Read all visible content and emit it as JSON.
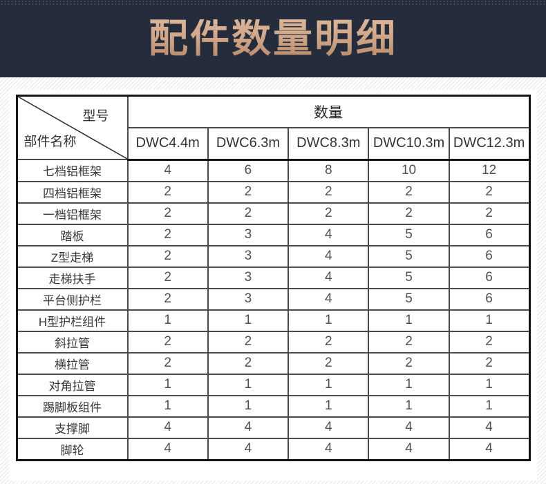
{
  "title": "配件数量明细",
  "table": {
    "corner": {
      "top_right": "型号",
      "bottom_left": "部件名称"
    },
    "quantity_header": "数量",
    "models": [
      "DWC4.4m",
      "DWC6.3m",
      "DWC8.3m",
      "DWC10.3m",
      "DWC12.3m"
    ],
    "rows": [
      {
        "name": "七档铝框架",
        "values": [
          4,
          6,
          8,
          10,
          12
        ]
      },
      {
        "name": "四档铝框架",
        "values": [
          2,
          2,
          2,
          2,
          2
        ]
      },
      {
        "name": "一档铝框架",
        "values": [
          2,
          2,
          2,
          2,
          2
        ]
      },
      {
        "name": "踏板",
        "values": [
          2,
          3,
          4,
          5,
          6
        ]
      },
      {
        "name": "Z型走梯",
        "values": [
          2,
          3,
          4,
          5,
          6
        ]
      },
      {
        "name": "走梯扶手",
        "values": [
          2,
          3,
          4,
          5,
          6
        ]
      },
      {
        "name": "平台侧护栏",
        "values": [
          2,
          3,
          4,
          5,
          6
        ]
      },
      {
        "name": "H型护栏组件",
        "values": [
          1,
          1,
          1,
          1,
          1
        ]
      },
      {
        "name": "斜拉管",
        "values": [
          2,
          2,
          2,
          2,
          2
        ]
      },
      {
        "name": "横拉管",
        "values": [
          2,
          2,
          2,
          2,
          2
        ]
      },
      {
        "name": "对角拉管",
        "values": [
          1,
          1,
          1,
          1,
          1
        ]
      },
      {
        "name": "踢脚板组件",
        "values": [
          1,
          1,
          1,
          1,
          1
        ]
      },
      {
        "name": "支撑脚",
        "values": [
          4,
          4,
          4,
          4,
          4
        ]
      },
      {
        "name": "脚轮",
        "values": [
          4,
          4,
          4,
          4,
          4
        ]
      }
    ]
  },
  "colors": {
    "banner_background": "#252c3c",
    "title_gold_light": "#dcb698",
    "title_gold_dark": "#b78a6a",
    "table_border": "#141414",
    "inner_border": "#4a4a4a",
    "stripe": "#e7e7e7"
  }
}
